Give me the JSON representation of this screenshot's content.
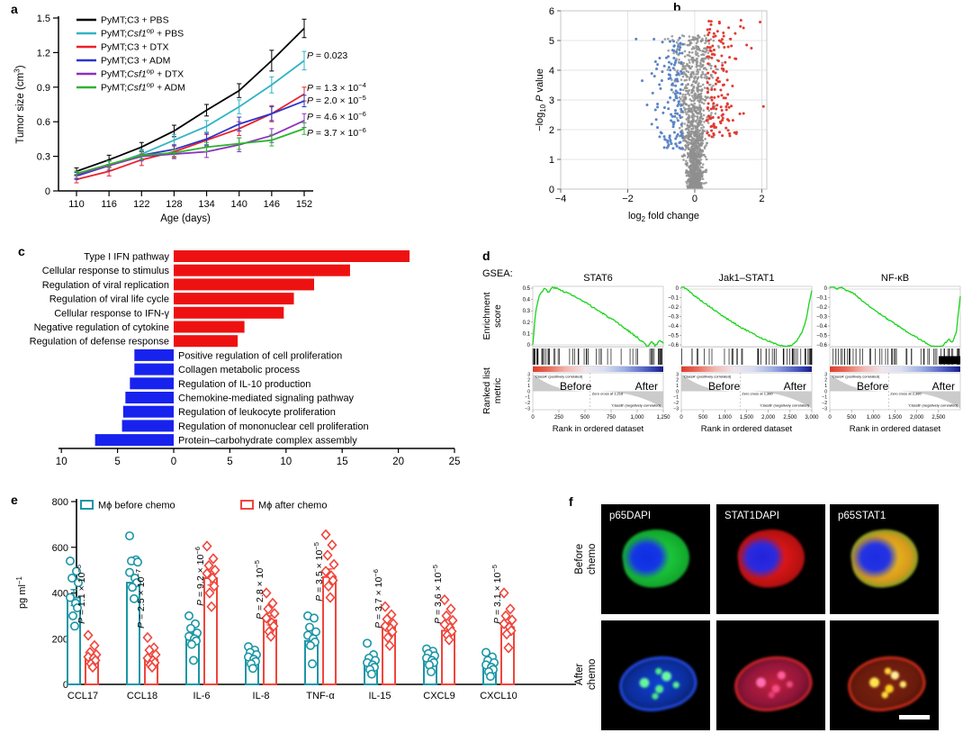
{
  "figure": {
    "letters": {
      "a": "a",
      "b": "b",
      "c": "c",
      "d": "d",
      "e": "e",
      "f": "f"
    }
  },
  "chart_data": [
    {
      "id": "a",
      "type": "line",
      "xlabel": "Age (days)",
      "ylabel_segs": [
        {
          "t": "Tumor size (cm"
        },
        {
          "t": "3",
          "sup": true
        },
        {
          "t": ")"
        }
      ],
      "x": [
        110,
        116,
        122,
        128,
        134,
        140,
        146,
        152
      ],
      "ylim": [
        0,
        1.5
      ],
      "yticks": [
        "0",
        "0.3",
        "0.6",
        "0.9",
        "1.2",
        "1.5"
      ],
      "ytick_vals": [
        0,
        0.3,
        0.6,
        0.9,
        1.2,
        1.5
      ],
      "series": [
        {
          "name_segs": [
            {
              "t": "PyMT;C3 + PBS"
            }
          ],
          "color": "#000000",
          "values": [
            0.17,
            0.27,
            0.38,
            0.52,
            0.7,
            0.87,
            1.13,
            1.41
          ],
          "err": [
            0.03,
            0.04,
            0.04,
            0.05,
            0.05,
            0.06,
            0.09,
            0.08
          ]
        },
        {
          "name_segs": [
            {
              "t": "PyMT;"
            },
            {
              "t": "Csf1",
              "i": true
            },
            {
              "t": "op",
              "sup": true
            },
            {
              "t": " + PBS"
            }
          ],
          "color": "#30b4c4",
          "values": [
            0.13,
            0.22,
            0.32,
            0.44,
            0.56,
            0.73,
            0.92,
            1.13
          ],
          "err": [
            0.03,
            0.04,
            0.04,
            0.05,
            0.05,
            0.06,
            0.07,
            0.08
          ]
        },
        {
          "name_segs": [
            {
              "t": "PyMT;C3 + DTX"
            }
          ],
          "color": "#ec2028",
          "values": [
            0.1,
            0.17,
            0.27,
            0.34,
            0.44,
            0.54,
            0.67,
            0.84
          ],
          "err": [
            0.03,
            0.04,
            0.05,
            0.05,
            0.05,
            0.06,
            0.07,
            0.06
          ]
        },
        {
          "name_segs": [
            {
              "t": "PyMT;C3 + ADM"
            }
          ],
          "color": "#2a35cc",
          "values": [
            0.13,
            0.22,
            0.31,
            0.36,
            0.45,
            0.58,
            0.67,
            0.78
          ],
          "err": [
            0.03,
            0.04,
            0.04,
            0.04,
            0.05,
            0.06,
            0.06,
            0.05
          ]
        },
        {
          "name_segs": [
            {
              "t": "PyMT;"
            },
            {
              "t": "Csf1",
              "i": true
            },
            {
              "t": "op",
              "sup": true
            },
            {
              "t": " + DTX"
            }
          ],
          "color": "#8c30c0",
          "values": [
            0.14,
            0.22,
            0.3,
            0.32,
            0.34,
            0.4,
            0.48,
            0.61
          ],
          "err": [
            0.03,
            0.04,
            0.04,
            0.04,
            0.05,
            0.06,
            0.06,
            0.06
          ]
        },
        {
          "name_segs": [
            {
              "t": "PyMT;"
            },
            {
              "t": "Csf1",
              "i": true
            },
            {
              "t": "op",
              "sup": true
            },
            {
              "t": " + ADM"
            }
          ],
          "color": "#2db52d",
          "values": [
            0.15,
            0.23,
            0.31,
            0.33,
            0.38,
            0.41,
            0.44,
            0.54
          ],
          "err": [
            0.02,
            0.03,
            0.04,
            0.03,
            0.04,
            0.05,
            0.05,
            0.05
          ]
        }
      ],
      "pvalues": [
        {
          "segs": [
            {
              "t": "P",
              "i": true
            },
            {
              "t": " = 0.023"
            }
          ],
          "y": 62
        },
        {
          "segs": [
            {
              "t": "P",
              "i": true
            },
            {
              "t": " = 1.3 × 10"
            },
            {
              "t": "−4",
              "sup": true
            }
          ],
          "y": 98
        },
        {
          "segs": [
            {
              "t": "P",
              "i": true
            },
            {
              "t": " = 2.0 × 10"
            },
            {
              "t": "−5",
              "sup": true
            }
          ],
          "y": 112
        },
        {
          "segs": [
            {
              "t": "P",
              "i": true
            },
            {
              "t": " = 4.6 × 10"
            },
            {
              "t": "−6",
              "sup": true
            }
          ],
          "y": 130
        },
        {
          "segs": [
            {
              "t": "P",
              "i": true
            },
            {
              "t": " = 3.7 × 10"
            },
            {
              "t": "−6",
              "sup": true
            }
          ],
          "y": 148
        }
      ]
    },
    {
      "id": "b",
      "type": "scatter",
      "xlabel_segs": [
        {
          "t": "log"
        },
        {
          "t": "2",
          "sub": true
        },
        {
          "t": " fold change"
        }
      ],
      "ylabel_segs": [
        {
          "t": "−log"
        },
        {
          "t": "10",
          "sub": true
        },
        {
          "t": " "
        },
        {
          "t": "P",
          "i": true
        },
        {
          "t": " value"
        }
      ],
      "xticks": [
        "−4",
        "−2",
        "0",
        "2"
      ],
      "xtick_vals": [
        -4,
        -2,
        0,
        2
      ],
      "yticks": [
        "0",
        "1",
        "2",
        "3",
        "4",
        "5",
        "6"
      ],
      "xlim": [
        -4,
        2.15
      ],
      "ylim": [
        0,
        6
      ],
      "grid_color": "#dcdcdc",
      "points": {
        "seed": 20,
        "gray": {
          "n": 1650,
          "color": "#8f8f8f"
        },
        "blue": {
          "n": 135,
          "color": "#5b84c8"
        },
        "red": {
          "n": 140,
          "color": "#e23b32"
        }
      }
    },
    {
      "id": "c",
      "type": "bar",
      "xticks": [
        "10",
        "5",
        "0",
        "5",
        "10",
        "15",
        "20",
        "25"
      ],
      "xtick_vals": [
        -10,
        -5,
        0,
        5,
        10,
        15,
        20,
        25
      ],
      "up_color": "#ee1111",
      "down_color": "#1822ee",
      "up": [
        {
          "label": "Type I IFN pathway",
          "value": 21.0
        },
        {
          "label": "Cellular response to stimulus",
          "value": 15.7
        },
        {
          "label": "Regulation of viral replication",
          "value": 12.5
        },
        {
          "label": "Regulation of viral life cycle",
          "value": 10.7
        },
        {
          "label": "Cellular response to IFN-γ",
          "value": 9.8
        },
        {
          "label": "Negative regulation of cytokine",
          "value": 6.3
        },
        {
          "label": "Regulation of defense response",
          "value": 5.7
        }
      ],
      "down": [
        {
          "label": "Positive regulation of cell proliferation",
          "value": 3.5
        },
        {
          "label": "Collagen metabolic process",
          "value": 3.5
        },
        {
          "label": "Regulation of IL-10 production",
          "value": 3.9
        },
        {
          "label": "Chemokine-mediated signaling pathway",
          "value": 4.3
        },
        {
          "label": "Regulation of leukocyte proliferation",
          "value": 4.5
        },
        {
          "label": "Regulation of mononuclear cell proliferation",
          "value": 4.6
        },
        {
          "label": "Protein–carbohydrate complex assembly",
          "value": 7.0
        }
      ]
    },
    {
      "id": "d",
      "type": "gsea",
      "heading": "GSEA:",
      "ylabel_top_lines": [
        "Enrichment",
        "score"
      ],
      "ylabel_bottom_lines": [
        "Ranked list",
        "metric"
      ],
      "xlabel": "Rank in ordered dataset",
      "curve_color": "#1ad41a",
      "panels": [
        {
          "title": "STAT6",
          "shape": "pos",
          "es_ticks": [
            "0.5",
            "0.4",
            "0.3",
            "0.2",
            "0.1",
            "0"
          ],
          "metric_ticks": [
            "3",
            "2",
            "1",
            "0",
            "−1",
            "−2",
            "−3"
          ],
          "xticks": [
            "0",
            "250",
            "500",
            "750",
            "1,000",
            "1,250"
          ],
          "before": "Before",
          "after": "After",
          "class_a": "'ClassA' (positively correlated)",
          "zero_cross": "Zero cross at 1,218",
          "class_b": "'ClassB' (negatively correlated)",
          "box_label": "",
          "seed": 3,
          "tick_bias": "left",
          "zc": 0.44
        },
        {
          "title": "Jak1–STAT1",
          "shape": "neg1",
          "es_ticks": [
            "0",
            "−0.1",
            "−0.2",
            "−0.3",
            "−0.4",
            "−0.5",
            "−0.6"
          ],
          "metric_ticks": [
            "3",
            "2",
            "1",
            "0",
            "−1",
            "−2",
            "−3"
          ],
          "xticks": [
            "0",
            "500",
            "1,000",
            "1,500",
            "2,000",
            "2,500",
            "3,000"
          ],
          "before": "Before",
          "after": "After",
          "class_a": "'ClassA' (positively correlated)",
          "zero_cross": "Zero cross at 1,380",
          "class_b": "'ClassB' (negatively correlated)",
          "box_label": "",
          "seed": 5,
          "tick_bias": "right",
          "zc": 0.45
        },
        {
          "title": "NF-κB",
          "shape": "neg2",
          "es_ticks": [
            "0",
            "−0.1",
            "−0.2",
            "−0.3",
            "−0.4",
            "−0.5",
            "−0.6"
          ],
          "metric_ticks": [
            "3",
            "2",
            "1",
            "0",
            "−1",
            "−2",
            "−3"
          ],
          "xticks": [
            "0",
            "500",
            "1,000",
            "1,500",
            "2,000",
            "2,500"
          ],
          "before": "Before",
          "after": "After",
          "class_a": "'ClassA' (positively correlated)",
          "zero_cross": "Zero cross at 2,380",
          "class_b": "'ClassB' (negatively correlated)",
          "box_label": "3,000",
          "seed": 9,
          "tick_bias": "right",
          "zc": 0.45
        }
      ]
    },
    {
      "id": "e",
      "type": "grouped_bar_scatter",
      "ylabel_segs": [
        {
          "t": "pg ml"
        },
        {
          "t": "−1",
          "sup": true
        }
      ],
      "yticks": [
        "0",
        "200",
        "400",
        "600",
        "800"
      ],
      "ytick_vals": [
        0,
        200,
        400,
        600,
        800
      ],
      "ylim": [
        0,
        800
      ],
      "categories": [
        "CCL17",
        "CCL18",
        "IL-6",
        "IL-8",
        "TNF-α",
        "IL-15",
        "CXCL9",
        "CXCL10"
      ],
      "legend": [
        {
          "label": "Mϕ before chemo",
          "color": "#1b96a6"
        },
        {
          "label": "Mϕ after chemo",
          "color": "#f0463c"
        }
      ],
      "before": {
        "color": "#1b96a6",
        "marker": "circle",
        "bars": [
          380,
          445,
          210,
          110,
          190,
          85,
          115,
          80
        ],
        "err": [
          35,
          30,
          25,
          15,
          25,
          12,
          15,
          12
        ],
        "points": [
          [
            540,
            495,
            465,
            445,
            380,
            355,
            335,
            300,
            255
          ],
          [
            650,
            545,
            540,
            535,
            490,
            465,
            445,
            425,
            375
          ],
          [
            300,
            265,
            245,
            225,
            210,
            200,
            190,
            175,
            105
          ],
          [
            165,
            150,
            140,
            130,
            120,
            110,
            100,
            90,
            70
          ],
          [
            300,
            290,
            250,
            230,
            215,
            200,
            185,
            170,
            90
          ],
          [
            180,
            130,
            115,
            105,
            95,
            85,
            75,
            65,
            45
          ],
          [
            155,
            145,
            135,
            125,
            115,
            105,
            95,
            85,
            55
          ],
          [
            140,
            120,
            105,
            95,
            85,
            75,
            65,
            55,
            35
          ]
        ]
      },
      "after": {
        "color": "#f0463c",
        "marker": "diamond",
        "bars": [
          115,
          108,
          465,
          280,
          470,
          250,
          235,
          250
        ],
        "err": [
          15,
          15,
          30,
          20,
          35,
          18,
          18,
          20
        ],
        "points": [
          [
            215,
            170,
            140,
            130,
            120,
            115,
            105,
            90,
            75
          ],
          [
            205,
            160,
            150,
            130,
            115,
            105,
            95,
            85,
            75
          ],
          [
            605,
            550,
            520,
            500,
            485,
            465,
            430,
            400,
            340
          ],
          [
            400,
            355,
            330,
            310,
            290,
            270,
            255,
            230,
            210
          ],
          [
            655,
            610,
            565,
            525,
            495,
            475,
            455,
            430,
            380
          ],
          [
            340,
            305,
            285,
            265,
            255,
            245,
            230,
            205,
            170
          ],
          [
            370,
            330,
            300,
            280,
            262,
            248,
            232,
            215,
            195
          ],
          [
            400,
            330,
            300,
            282,
            265,
            250,
            235,
            220,
            160
          ]
        ]
      },
      "pvalues": [
        {
          "segs": [
            {
              "t": "P",
              "i": true
            },
            {
              "t": " = 1.1 × 10"
            },
            {
              "t": "−5",
              "sup": true
            }
          ],
          "cy": 120
        },
        {
          "segs": [
            {
              "t": "P",
              "i": true
            },
            {
              "t": " = 2.5 × 10"
            },
            {
              "t": "−7",
              "sup": true
            }
          ],
          "cy": 125
        },
        {
          "segs": [
            {
              "t": "P",
              "i": true
            },
            {
              "t": " = 9.2 × 10"
            },
            {
              "t": "−6",
              "sup": true
            }
          ],
          "cy": 100
        },
        {
          "segs": [
            {
              "t": "P",
              "i": true
            },
            {
              "t": " = 2.8 × 10"
            },
            {
              "t": "−5",
              "sup": true
            }
          ],
          "cy": 115
        },
        {
          "segs": [
            {
              "t": "P",
              "i": true
            },
            {
              "t": " = 3.5 × 10"
            },
            {
              "t": "−5",
              "sup": true
            }
          ],
          "cy": 95
        },
        {
          "segs": [
            {
              "t": "P",
              "i": true
            },
            {
              "t": " = 3.7 × 10"
            },
            {
              "t": "−6",
              "sup": true
            }
          ],
          "cy": 125
        },
        {
          "segs": [
            {
              "t": "P",
              "i": true
            },
            {
              "t": " = 3.6 × 10"
            },
            {
              "t": "−5",
              "sup": true
            }
          ],
          "cy": 120
        },
        {
          "segs": [
            {
              "t": "P",
              "i": true
            },
            {
              "t": " = 3.1 × 10"
            },
            {
              "t": "−5",
              "sup": true
            }
          ],
          "cy": 120
        }
      ]
    }
  ],
  "panel_f": {
    "col_titles": [
      "p65DAPI",
      "STAT1DAPI",
      "p65STAT1"
    ],
    "row_labels": [
      [
        "Before",
        "chemo"
      ],
      [
        "After",
        "chemo"
      ]
    ]
  }
}
